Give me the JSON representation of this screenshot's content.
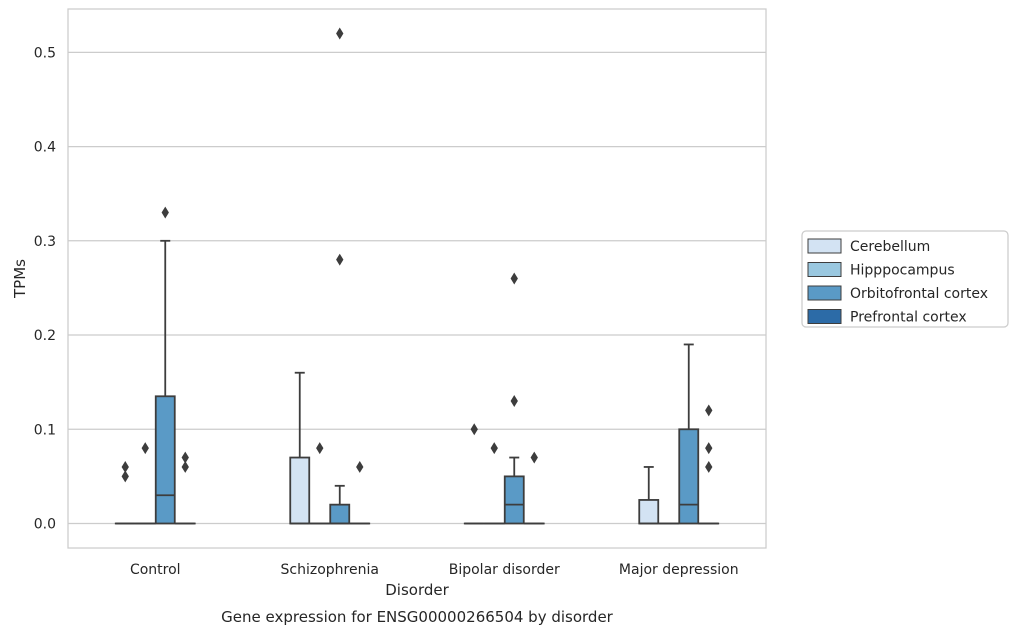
{
  "chart_data": {
    "type": "box",
    "title": "",
    "caption": "Gene expression for ENSG00000266504 by disorder",
    "xlabel": "Disorder",
    "ylabel": "TPMs",
    "ylim": [
      -0.026,
      0.546
    ],
    "yticks": [
      0.0,
      0.1,
      0.2,
      0.3,
      0.4,
      0.5
    ],
    "ytick_labels": [
      "0.0",
      "0.1",
      "0.2",
      "0.3",
      "0.4",
      "0.5"
    ],
    "grid": "horizontal",
    "legend_position": "right",
    "categories": [
      "Control",
      "Schizophrenia",
      "Bipolar disorder",
      "Major depression"
    ],
    "series": [
      {
        "name": "Cerebellum",
        "color": "#d3e3f3",
        "boxes": [
          {
            "category": "Control",
            "whisker_low": 0.0,
            "q1": 0.0,
            "median": 0.0,
            "q3": 0.0,
            "whisker_high": 0.0,
            "outliers": [
              0.05,
              0.06
            ]
          },
          {
            "category": "Schizophrenia",
            "whisker_low": 0.0,
            "q1": 0.0,
            "median": 0.0,
            "q3": 0.07,
            "whisker_high": 0.16,
            "outliers": []
          },
          {
            "category": "Bipolar disorder",
            "whisker_low": 0.0,
            "q1": 0.0,
            "median": 0.0,
            "q3": 0.0,
            "whisker_high": 0.0,
            "outliers": [
              0.1
            ]
          },
          {
            "category": "Major depression",
            "whisker_low": 0.0,
            "q1": 0.0,
            "median": 0.0,
            "q3": 0.025,
            "whisker_high": 0.06,
            "outliers": []
          }
        ]
      },
      {
        "name": "Hipppocampus",
        "color": "#9ac8e0",
        "boxes": [
          {
            "category": "Control",
            "whisker_low": 0.0,
            "q1": 0.0,
            "median": 0.0,
            "q3": 0.0,
            "whisker_high": 0.0,
            "outliers": [
              0.08
            ]
          },
          {
            "category": "Schizophrenia",
            "whisker_low": 0.0,
            "q1": 0.0,
            "median": 0.0,
            "q3": 0.0,
            "whisker_high": 0.0,
            "outliers": [
              0.08
            ]
          },
          {
            "category": "Bipolar disorder",
            "whisker_low": 0.0,
            "q1": 0.0,
            "median": 0.0,
            "q3": 0.0,
            "whisker_high": 0.0,
            "outliers": [
              0.08
            ]
          },
          {
            "category": "Major depression",
            "whisker_low": 0.0,
            "q1": 0.0,
            "median": 0.0,
            "q3": 0.0,
            "whisker_high": 0.0,
            "outliers": []
          }
        ]
      },
      {
        "name": "Orbitofrontal cortex",
        "color": "#5a9ac6",
        "boxes": [
          {
            "category": "Control",
            "whisker_low": 0.0,
            "q1": 0.0,
            "median": 0.03,
            "q3": 0.135,
            "whisker_high": 0.3,
            "outliers": [
              0.33
            ]
          },
          {
            "category": "Schizophrenia",
            "whisker_low": 0.0,
            "q1": 0.0,
            "median": 0.0,
            "q3": 0.02,
            "whisker_high": 0.04,
            "outliers": [
              0.28,
              0.52
            ]
          },
          {
            "category": "Bipolar disorder",
            "whisker_low": 0.0,
            "q1": 0.0,
            "median": 0.02,
            "q3": 0.05,
            "whisker_high": 0.07,
            "outliers": [
              0.13,
              0.26
            ]
          },
          {
            "category": "Major depression",
            "whisker_low": 0.0,
            "q1": 0.0,
            "median": 0.02,
            "q3": 0.1,
            "whisker_high": 0.19,
            "outliers": []
          }
        ]
      },
      {
        "name": "Prefrontal cortex",
        "color": "#2c6ba7",
        "boxes": [
          {
            "category": "Control",
            "whisker_low": 0.0,
            "q1": 0.0,
            "median": 0.0,
            "q3": 0.0,
            "whisker_high": 0.0,
            "outliers": [
              0.06,
              0.07
            ]
          },
          {
            "category": "Schizophrenia",
            "whisker_low": 0.0,
            "q1": 0.0,
            "median": 0.0,
            "q3": 0.0,
            "whisker_high": 0.0,
            "outliers": [
              0.06
            ]
          },
          {
            "category": "Bipolar disorder",
            "whisker_low": 0.0,
            "q1": 0.0,
            "median": 0.0,
            "q3": 0.0,
            "whisker_high": 0.0,
            "outliers": [
              0.07
            ]
          },
          {
            "category": "Major depression",
            "whisker_low": 0.0,
            "q1": 0.0,
            "median": 0.0,
            "q3": 0.0,
            "whisker_high": 0.0,
            "outliers": [
              0.06,
              0.08,
              0.12
            ]
          }
        ]
      }
    ]
  }
}
